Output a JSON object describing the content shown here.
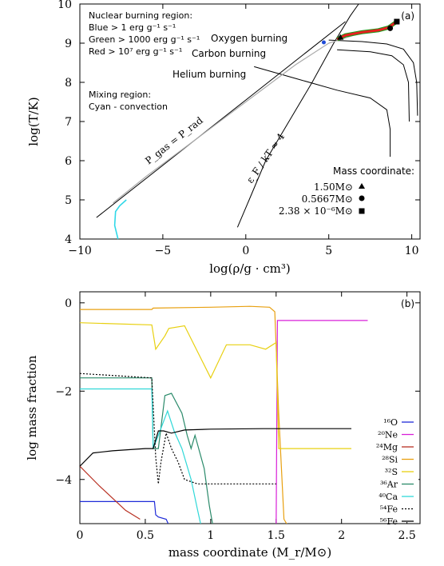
{
  "chart_data": [
    {
      "panel": "(a)",
      "type": "line",
      "xlabel": "log(ρ/g · cm³)",
      "ylabel": "log(T/K)",
      "xlim": [
        -10,
        10.5
      ],
      "ylim": [
        4,
        10
      ],
      "xticks": [
        -10,
        -5,
        0,
        5,
        10
      ],
      "yticks": [
        4,
        5,
        6,
        7,
        8,
        9,
        10
      ],
      "text": {
        "region_title": "Nuclear burning region:",
        "blue": "Blue > 1 erg g⁻¹ s⁻¹",
        "green": "Green > 1000 erg g⁻¹ s⁻¹",
        "red": "Red > 10⁷ erg g⁻¹ s⁻¹",
        "mixing_title": "Mixing region:",
        "cyan": "Cyan - convection",
        "oxygen": "Oxygen burning",
        "carbon": "Carbon burning",
        "helium": "Helium burning",
        "pgas": "P_gas = P_rad",
        "efkt": "ε_F / kT ≈ 4",
        "mass_title": "Mass coordinate:",
        "mass1": "1.50M⊙",
        "mass2": "0.5667M⊙",
        "mass3": "2.38 × 10⁻⁶M⊙"
      },
      "pgas_line": [
        [
          -9,
          4.55
        ],
        [
          -6,
          5.55
        ],
        [
          -3,
          6.55
        ],
        [
          0,
          7.55
        ],
        [
          3,
          8.55
        ],
        [
          6,
          9.55
        ]
      ],
      "degeneracy_line": [
        [
          -0.5,
          4.3
        ],
        [
          0.2,
          5.0
        ],
        [
          1.2,
          6.0
        ],
        [
          2.6,
          7.0
        ],
        [
          4.0,
          8.0
        ],
        [
          5.3,
          9.0
        ],
        [
          6.3,
          9.7
        ],
        [
          6.8,
          10
        ]
      ],
      "oxygen_curve": [
        [
          5,
          9.08
        ],
        [
          7,
          9.04
        ],
        [
          8.5,
          8.98
        ],
        [
          9.5,
          8.85
        ],
        [
          10.1,
          8.5
        ],
        [
          10.3,
          8.0
        ],
        [
          10.35,
          7.15
        ]
      ],
      "carbon_curve": [
        [
          5.5,
          8.83
        ],
        [
          7.5,
          8.78
        ],
        [
          8.8,
          8.68
        ],
        [
          9.5,
          8.45
        ],
        [
          9.8,
          8.0
        ],
        [
          9.85,
          7.0
        ]
      ],
      "helium_curve": [
        [
          0.5,
          8.4
        ],
        [
          3,
          8.1
        ],
        [
          5.5,
          7.8
        ],
        [
          7.5,
          7.6
        ],
        [
          8.5,
          7.3
        ],
        [
          8.7,
          6.8
        ],
        [
          8.7,
          6.1
        ]
      ],
      "profile_grey": [
        [
          -8,
          4.92
        ],
        [
          -6,
          5.6
        ],
        [
          -3,
          6.55
        ],
        [
          0,
          7.5
        ],
        [
          3,
          8.45
        ],
        [
          5,
          9.0
        ],
        [
          6.5,
          9.2
        ],
        [
          8.5,
          9.4
        ],
        [
          9.1,
          9.5
        ]
      ],
      "profile_cyan": [
        [
          -7.7,
          4.0
        ],
        [
          -7.9,
          4.35
        ],
        [
          -7.85,
          4.7
        ],
        [
          -7.6,
          4.85
        ],
        [
          -7.2,
          5.0
        ]
      ],
      "profile_red": [
        [
          5.5,
          9.1
        ],
        [
          6,
          9.2
        ],
        [
          7,
          9.28
        ],
        [
          8,
          9.33
        ],
        [
          8.6,
          9.4
        ],
        [
          9.1,
          9.55
        ]
      ],
      "markers": [
        {
          "shape": "square",
          "x": 9.1,
          "y": 9.55
        },
        {
          "shape": "circle",
          "x": 8.7,
          "y": 9.38
        },
        {
          "shape": "triangle",
          "x": 5.7,
          "y": 9.15
        }
      ]
    },
    {
      "panel": "(b)",
      "type": "line",
      "xlabel": "mass coordinate (M_r/M⊙)",
      "ylabel": "log mass fraction",
      "xlim": [
        0,
        2.6
      ],
      "ylim": [
        -5,
        0.25
      ],
      "xticks": [
        0,
        0.5,
        1,
        1.5,
        2,
        2.5
      ],
      "yticks": [
        0,
        -2,
        -4
      ],
      "series": [
        {
          "name": "¹⁶O",
          "color": "#1f2bd8",
          "points": [
            [
              0,
              -4.5
            ],
            [
              0.57,
              -4.5
            ],
            [
              0.58,
              -4.8
            ],
            [
              0.6,
              -4.85
            ],
            [
              0.66,
              -4.9
            ],
            [
              0.69,
              -5.1
            ]
          ]
        },
        {
          "name": "²⁰Ne",
          "color": "#d81fd8",
          "points": [
            [
              1.5,
              -5.1
            ],
            [
              1.51,
              -0.4
            ],
            [
              2.2,
              -0.4
            ]
          ]
        },
        {
          "name": "²⁴Mg",
          "color": "#b83022",
          "points": [
            [
              0,
              -3.7
            ],
            [
              0.15,
              -4.15
            ],
            [
              0.35,
              -4.7
            ],
            [
              0.46,
              -4.9
            ]
          ]
        },
        {
          "name": "²⁸Si",
          "color": "#e8a010",
          "points": [
            [
              0,
              -0.15
            ],
            [
              0.55,
              -0.15
            ],
            [
              0.56,
              -0.12
            ],
            [
              1,
              -0.1
            ],
            [
              1.3,
              -0.08
            ],
            [
              1.45,
              -0.1
            ],
            [
              1.49,
              -0.2
            ],
            [
              1.52,
              -2.5
            ],
            [
              1.56,
              -4.9
            ],
            [
              1.6,
              -5.1
            ]
          ]
        },
        {
          "name": "³²S",
          "color": "#e8d010",
          "points": [
            [
              0,
              -0.45
            ],
            [
              0.55,
              -0.5
            ],
            [
              0.58,
              -1.05
            ],
            [
              0.65,
              -0.75
            ],
            [
              0.68,
              -0.58
            ],
            [
              0.8,
              -0.52
            ],
            [
              1.0,
              -1.7
            ],
            [
              1.12,
              -0.95
            ],
            [
              1.3,
              -0.95
            ],
            [
              1.42,
              -1.05
            ],
            [
              1.5,
              -0.9
            ],
            [
              1.52,
              -3.3
            ],
            [
              2.2,
              -3.3
            ]
          ]
        },
        {
          "name": "³⁶Ar",
          "color": "#2a8a6a",
          "points": [
            [
              0,
              -1.7
            ],
            [
              0.55,
              -1.7
            ],
            [
              0.56,
              -3.3
            ],
            [
              0.6,
              -3.3
            ],
            [
              0.65,
              -2.1
            ],
            [
              0.7,
              -2.05
            ],
            [
              0.78,
              -2.5
            ],
            [
              0.82,
              -3.0
            ],
            [
              0.85,
              -3.3
            ],
            [
              0.88,
              -3.0
            ],
            [
              0.95,
              -3.75
            ],
            [
              0.99,
              -4.6
            ],
            [
              1.02,
              -5.1
            ]
          ]
        },
        {
          "name": "⁴⁰Ca",
          "color": "#30d8d8",
          "points": [
            [
              0,
              -1.95
            ],
            [
              0.55,
              -1.95
            ],
            [
              0.56,
              -3.3
            ],
            [
              0.6,
              -3.0
            ],
            [
              0.67,
              -2.45
            ],
            [
              0.72,
              -2.9
            ],
            [
              0.78,
              -3.3
            ],
            [
              0.85,
              -4.0
            ],
            [
              0.9,
              -4.7
            ],
            [
              0.93,
              -5.1
            ]
          ]
        },
        {
          "name": "⁵⁴Fe",
          "color": "#000000",
          "dashed": true,
          "points": [
            [
              0,
              -1.6
            ],
            [
              0.55,
              -1.7
            ],
            [
              0.58,
              -3.5
            ],
            [
              0.6,
              -4.1
            ],
            [
              0.62,
              -3.6
            ],
            [
              0.66,
              -2.95
            ],
            [
              0.7,
              -3.3
            ],
            [
              0.75,
              -3.6
            ],
            [
              0.8,
              -4.0
            ],
            [
              0.9,
              -4.1
            ],
            [
              1.2,
              -4.1
            ],
            [
              1.5,
              -4.1
            ]
          ]
        },
        {
          "name": "⁵⁶Fe",
          "color": "#000000",
          "points": [
            [
              0,
              -3.7
            ],
            [
              0.1,
              -3.4
            ],
            [
              0.25,
              -3.35
            ],
            [
              0.5,
              -3.3
            ],
            [
              0.56,
              -3.3
            ],
            [
              0.6,
              -2.9
            ],
            [
              0.64,
              -2.9
            ],
            [
              0.7,
              -2.95
            ],
            [
              0.8,
              -2.88
            ],
            [
              1.0,
              -2.86
            ],
            [
              1.4,
              -2.85
            ],
            [
              1.6,
              -2.85
            ],
            [
              2.2,
              -2.85
            ]
          ]
        }
      ]
    }
  ]
}
